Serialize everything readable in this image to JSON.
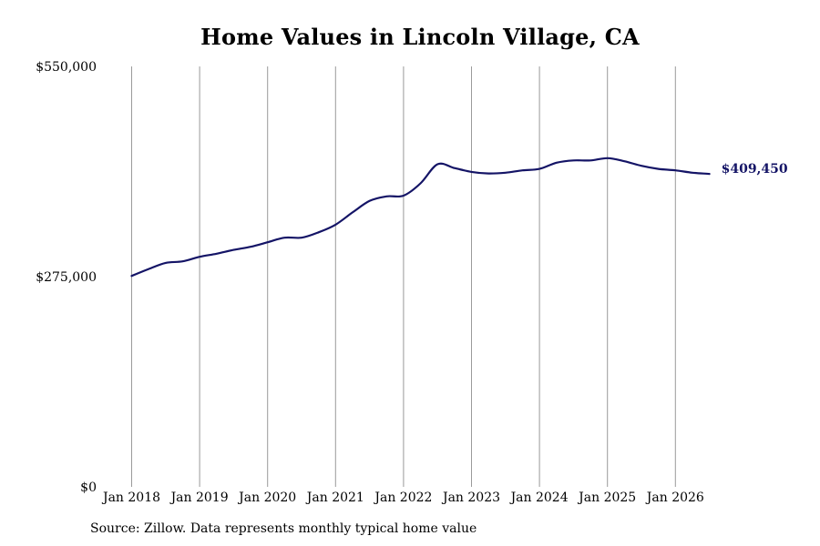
{
  "chart_data": {
    "type": "line",
    "title": "Home Values in Lincoln Village, CA",
    "xlabel": "",
    "ylabel": "",
    "ylim": [
      0,
      550000
    ],
    "y_ticks": [
      {
        "value": 0,
        "label": "$0"
      },
      {
        "value": 275000,
        "label": "$275,000"
      },
      {
        "value": 550000,
        "label": "$550,000"
      }
    ],
    "x_ticks": [
      "Jan 2018",
      "Jan 2019",
      "Jan 2020",
      "Jan 2021",
      "Jan 2022",
      "Jan 2023",
      "Jan 2024",
      "Jan 2025",
      "Jan 2026"
    ],
    "grid": "vertical",
    "line_color": "#141466",
    "end_label": "$409,450",
    "series": [
      {
        "x": [
          "2018-01",
          "2018-04",
          "2018-07",
          "2018-10",
          "2019-01",
          "2019-04",
          "2019-07",
          "2019-10",
          "2020-01",
          "2020-04",
          "2020-07",
          "2020-10",
          "2021-01",
          "2021-04",
          "2021-07",
          "2021-10",
          "2022-01",
          "2022-04",
          "2022-07",
          "2022-10",
          "2023-01",
          "2023-04",
          "2023-07",
          "2023-10",
          "2024-01",
          "2024-04",
          "2024-07",
          "2024-10",
          "2025-01",
          "2025-04",
          "2025-07",
          "2025-10",
          "2026-01",
          "2026-04",
          "2026-07"
        ],
        "values": [
          276000,
          285000,
          293000,
          295000,
          301000,
          305000,
          310000,
          314000,
          320000,
          326000,
          326000,
          333000,
          343000,
          359000,
          374000,
          380000,
          381000,
          397000,
          422000,
          417000,
          412000,
          410000,
          411000,
          414000,
          416000,
          424000,
          427000,
          427000,
          430000,
          426000,
          420000,
          416000,
          414000,
          411000,
          409450
        ]
      }
    ],
    "source": "Source: Zillow. Data represents monthly typical home value"
  }
}
